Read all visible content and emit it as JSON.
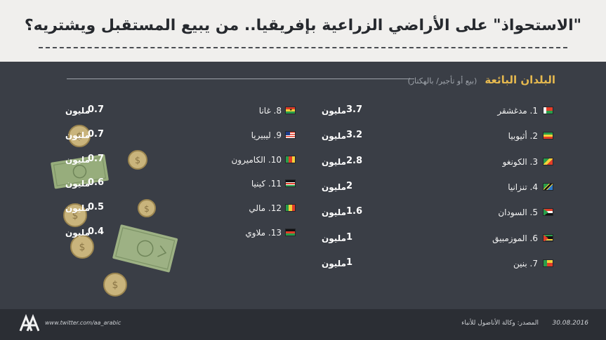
{
  "title": "\"الاستحواذ\" على الأراضي الزراعية بإفريقيا.. من يبيع المستقبل ويشتريه؟",
  "section": {
    "title": "البلدان البائعة",
    "subtitle": "(بيع أو تأجير/ بالهكتار)"
  },
  "unit_label": "مليون",
  "chart_data": {
    "type": "table",
    "title": "البلدان البائعة",
    "subtitle": "(بيع أو تأجير/ بالهكتار)",
    "unit": "مليون",
    "rows": [
      {
        "rank": "1",
        "country": "مدغشقر",
        "value_label": "3.7",
        "value": 3.7,
        "flag": "madagascar-flag"
      },
      {
        "rank": "2",
        "country": "أثيوبيا",
        "value_label": "3.2",
        "value": 3.2,
        "flag": "ethiopia-flag"
      },
      {
        "rank": "3",
        "country": "الكونغو",
        "value_label": "2.8",
        "value": 2.8,
        "flag": "congo-flag"
      },
      {
        "rank": "4",
        "country": "تنزانيا",
        "value_label": "2",
        "value": 2,
        "flag": "tanzania-flag"
      },
      {
        "rank": "5",
        "country": "السودان",
        "value_label": "1.6",
        "value": 1.6,
        "flag": "sudan-flag"
      },
      {
        "rank": "6",
        "country": "الموزمبيق",
        "value_label": "1",
        "value": 1,
        "flag": "mozambique-flag"
      },
      {
        "rank": "7",
        "country": "بنين",
        "value_label": "1",
        "value": 1,
        "flag": "benin-flag"
      },
      {
        "rank": "8",
        "country": "غانا",
        "value_label": "0.7",
        "value": 0.7,
        "flag": "ghana-flag"
      },
      {
        "rank": "9",
        "country": "ليبيريا",
        "value_label": "0.7",
        "value": 0.7,
        "flag": "liberia-flag"
      },
      {
        "rank": "10",
        "country": "الكاميرون",
        "value_label": "0.7",
        "value": 0.7,
        "flag": "cameroon-flag"
      },
      {
        "rank": "11",
        "country": "كينيا",
        "value_label": "0.6",
        "value": 0.6,
        "flag": "kenya-flag"
      },
      {
        "rank": "12",
        "country": "مالي",
        "value_label": "0.5",
        "value": 0.5,
        "flag": "mali-flag"
      },
      {
        "rank": "13",
        "country": "ملاوي",
        "value_label": "0.4",
        "value": 0.4,
        "flag": "malawi-flag"
      }
    ]
  },
  "footer": {
    "twitter": "www.twitter.com/aa_arabic",
    "source": "المصدر: وكالة الأناضول للأنباء",
    "date": "30.08.2016",
    "logo_text": "AA"
  },
  "colors": {
    "background": "#3a3e46",
    "header": "#f0efed",
    "accent": "#e6b94f",
    "footer": "#2b2e34"
  }
}
